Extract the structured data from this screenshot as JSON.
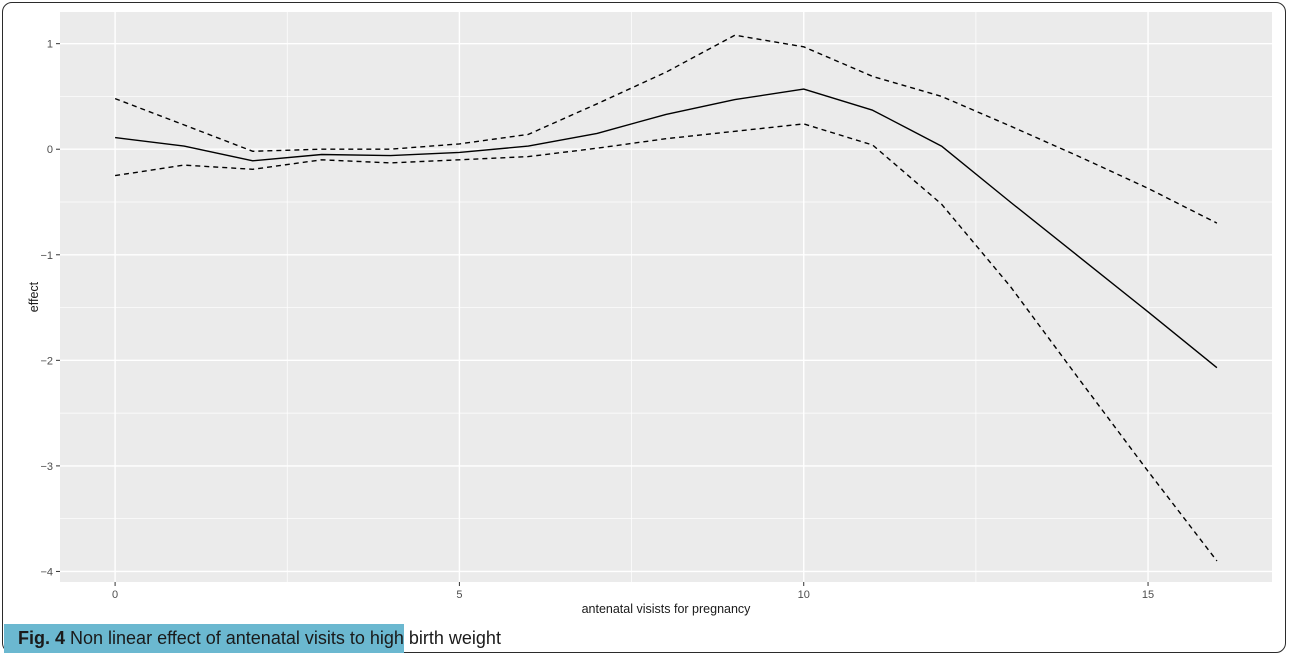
{
  "chart_data": {
    "type": "line",
    "title": "",
    "xlabel": "antenatal visists for pregnancy",
    "ylabel": "effect",
    "xlim": [
      -0.8,
      16.8
    ],
    "ylim": [
      -4.1,
      1.3
    ],
    "x_ticks": [
      0,
      5,
      10,
      15
    ],
    "y_ticks": [
      1,
      0,
      -1,
      -2,
      -3,
      -4
    ],
    "x_tick_labels": [
      "0",
      "5",
      "10",
      "15"
    ],
    "y_tick_labels": [
      "1",
      "0",
      "−1",
      "−2",
      "−3",
      "−4"
    ],
    "grid": true,
    "legend": "none",
    "series": [
      {
        "role": "estimate",
        "style": "solid",
        "x": [
          0,
          1,
          2,
          3,
          4,
          5,
          6,
          7,
          8,
          9,
          10,
          11,
          12,
          13,
          14,
          15,
          16
        ],
        "y": [
          0.11,
          0.03,
          -0.11,
          -0.05,
          -0.06,
          -0.03,
          0.03,
          0.15,
          0.33,
          0.47,
          0.57,
          0.37,
          0.03,
          -0.5,
          -1.02,
          -1.54,
          -2.07
        ]
      },
      {
        "role": "upper bound",
        "style": "dashed",
        "x": [
          0,
          1,
          2,
          3,
          4,
          5,
          6,
          7,
          8,
          9,
          10,
          11,
          12,
          13,
          14,
          15,
          16
        ],
        "y": [
          0.48,
          0.23,
          -0.02,
          0.0,
          0.0,
          0.05,
          0.14,
          0.43,
          0.73,
          1.08,
          0.97,
          0.69,
          0.5,
          0.22,
          -0.07,
          -0.37,
          -0.7
        ]
      },
      {
        "role": "lower bound",
        "style": "dashed",
        "x": [
          0,
          1,
          2,
          3,
          4,
          5,
          6,
          7,
          8,
          9,
          10,
          11,
          12,
          13,
          14,
          15,
          16
        ],
        "y": [
          -0.25,
          -0.15,
          -0.19,
          -0.1,
          -0.13,
          -0.1,
          -0.07,
          0.01,
          0.1,
          0.17,
          0.24,
          0.04,
          -0.52,
          -1.3,
          -2.18,
          -3.05,
          -3.9
        ]
      }
    ],
    "colors": {
      "panel": "#ebebeb",
      "grid": "#ffffff",
      "line": "#000000",
      "tick_text": "#4d4d4d"
    }
  },
  "caption": {
    "label": "Fig. 4",
    "text_highlighted": " Non linear effect of antenatal visits to high",
    "text_rest": " birth weight",
    "highlight_color": "#6bb8d0"
  }
}
